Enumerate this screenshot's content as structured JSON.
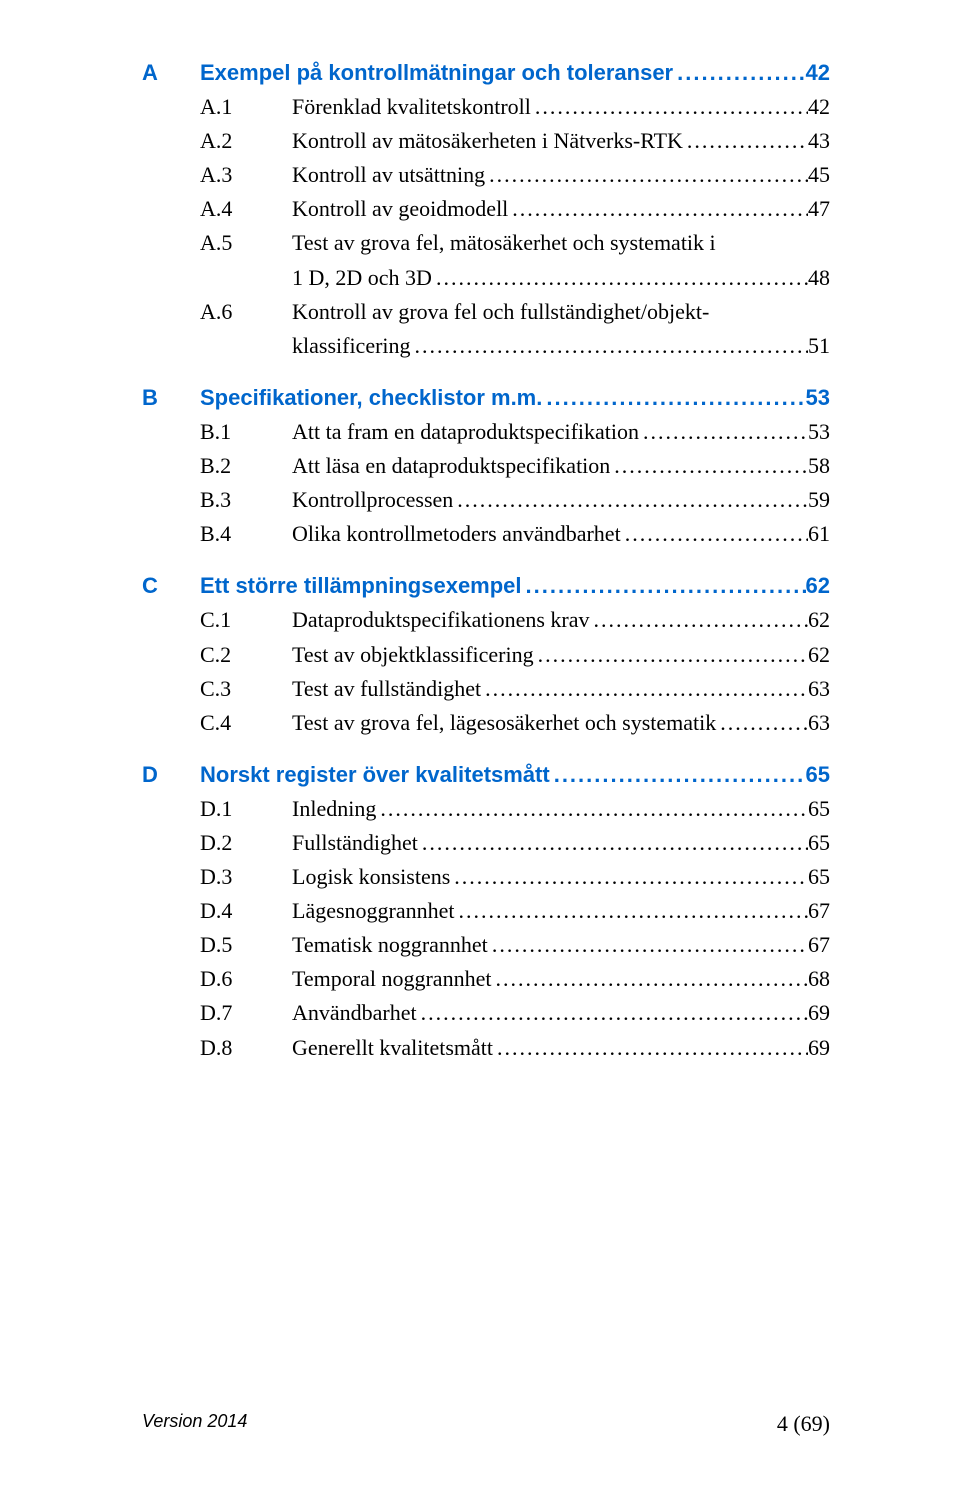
{
  "colors": {
    "heading": "#0066cc",
    "body": "#000000",
    "background": "#ffffff"
  },
  "leader_char": ".",
  "sections": [
    {
      "letter": "A",
      "title": "Exempel på kontrollmätningar och toleranser",
      "page": "42",
      "no_leader": true,
      "subs": [
        {
          "num": "A.1",
          "title": "Förenklad kvalitetskontroll",
          "page": "42"
        },
        {
          "num": "A.2",
          "title": "Kontroll av mätosäkerheten i Nätverks-RTK",
          "page": "43"
        },
        {
          "num": "A.3",
          "title": "Kontroll av utsättning",
          "page": "45"
        },
        {
          "num": "A.4",
          "title": "Kontroll av geoidmodell",
          "page": "47"
        },
        {
          "num": "A.5",
          "title": "Test av grova fel, mätosäkerhet och systematik i",
          "cont": "1 D, 2D och 3D",
          "page": "48"
        },
        {
          "num": "A.6",
          "title": "Kontroll av grova fel och fullständighet/objekt-",
          "cont": "klassificering",
          "page": "51"
        }
      ]
    },
    {
      "letter": "B",
      "title": "Specifikationer, checklistor m.m.",
      "page": "53",
      "subs": [
        {
          "num": "B.1",
          "title": "Att ta fram en dataproduktspecifikation",
          "page": "53"
        },
        {
          "num": "B.2",
          "title": "Att läsa en dataproduktspecifikation",
          "page": "58"
        },
        {
          "num": "B.3",
          "title": "Kontrollprocessen",
          "page": "59"
        },
        {
          "num": "B.4",
          "title": "Olika kontrollmetoders användbarhet",
          "page": "61"
        }
      ]
    },
    {
      "letter": "C",
      "title": "Ett större tillämpningsexempel",
      "page": "62",
      "subs": [
        {
          "num": "C.1",
          "title": "Dataproduktspecifikationens krav",
          "page": "62"
        },
        {
          "num": "C.2",
          "title": "Test av objektklassificering",
          "page": "62"
        },
        {
          "num": "C.3",
          "title": "Test av fullständighet",
          "page": "63"
        },
        {
          "num": "C.4",
          "title": "Test av grova fel, lägesosäkerhet och systematik",
          "page": "63"
        }
      ]
    },
    {
      "letter": "D",
      "title": "Norskt register över kvalitetsmått",
      "page": "65",
      "subs": [
        {
          "num": "D.1",
          "title": "Inledning",
          "page": "65"
        },
        {
          "num": "D.2",
          "title": "Fullständighet",
          "page": "65"
        },
        {
          "num": "D.3",
          "title": "Logisk konsistens",
          "page": "65"
        },
        {
          "num": "D.4",
          "title": "Lägesnoggrannhet",
          "page": "67"
        },
        {
          "num": "D.5",
          "title": "Tematisk noggrannhet",
          "page": "67"
        },
        {
          "num": "D.6",
          "title": "Temporal noggrannhet",
          "page": "68"
        },
        {
          "num": "D.7",
          "title": "Användbarhet",
          "page": "69"
        },
        {
          "num": "D.8",
          "title": "Generellt kvalitetsmått",
          "page": "69"
        }
      ]
    }
  ],
  "footer": {
    "left": "Version 2014",
    "right": "4 (69)"
  }
}
